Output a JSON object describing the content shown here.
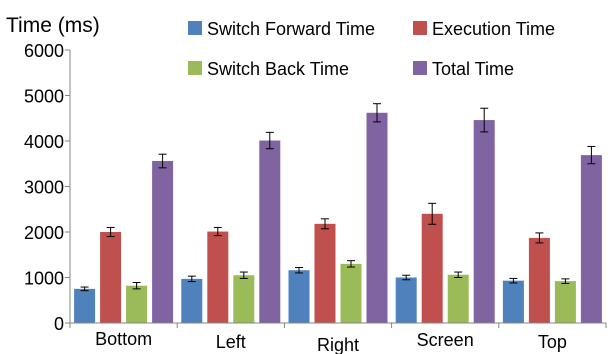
{
  "chart_data": {
    "type": "bar",
    "ylabel": "Time (ms)",
    "xlabel": "",
    "ylim": [
      0,
      6000
    ],
    "y_ticks": [
      0,
      1000,
      2000,
      3000,
      4000,
      5000,
      6000
    ],
    "grid": false,
    "legend_position": "top",
    "categories": [
      "Bottom",
      "Left",
      "Right",
      "Screen",
      "Top"
    ],
    "series": [
      {
        "name": "Switch Forward Time",
        "color": "#4f81bd",
        "values": [
          750,
          970,
          1160,
          1000,
          930
        ],
        "errors": [
          40,
          60,
          60,
          50,
          50
        ]
      },
      {
        "name": "Execution Time",
        "color": "#c0504d",
        "values": [
          2000,
          2010,
          2180,
          2400,
          1870
        ],
        "errors": [
          100,
          90,
          110,
          230,
          110
        ]
      },
      {
        "name": "Switch Back Time",
        "color": "#9bbb59",
        "values": [
          820,
          1050,
          1300,
          1060,
          920
        ],
        "errors": [
          70,
          70,
          70,
          60,
          50
        ]
      },
      {
        "name": "Total Time",
        "color": "#8064a2",
        "values": [
          3560,
          4010,
          4620,
          4460,
          3690
        ],
        "errors": [
          150,
          180,
          200,
          260,
          190
        ]
      }
    ]
  }
}
